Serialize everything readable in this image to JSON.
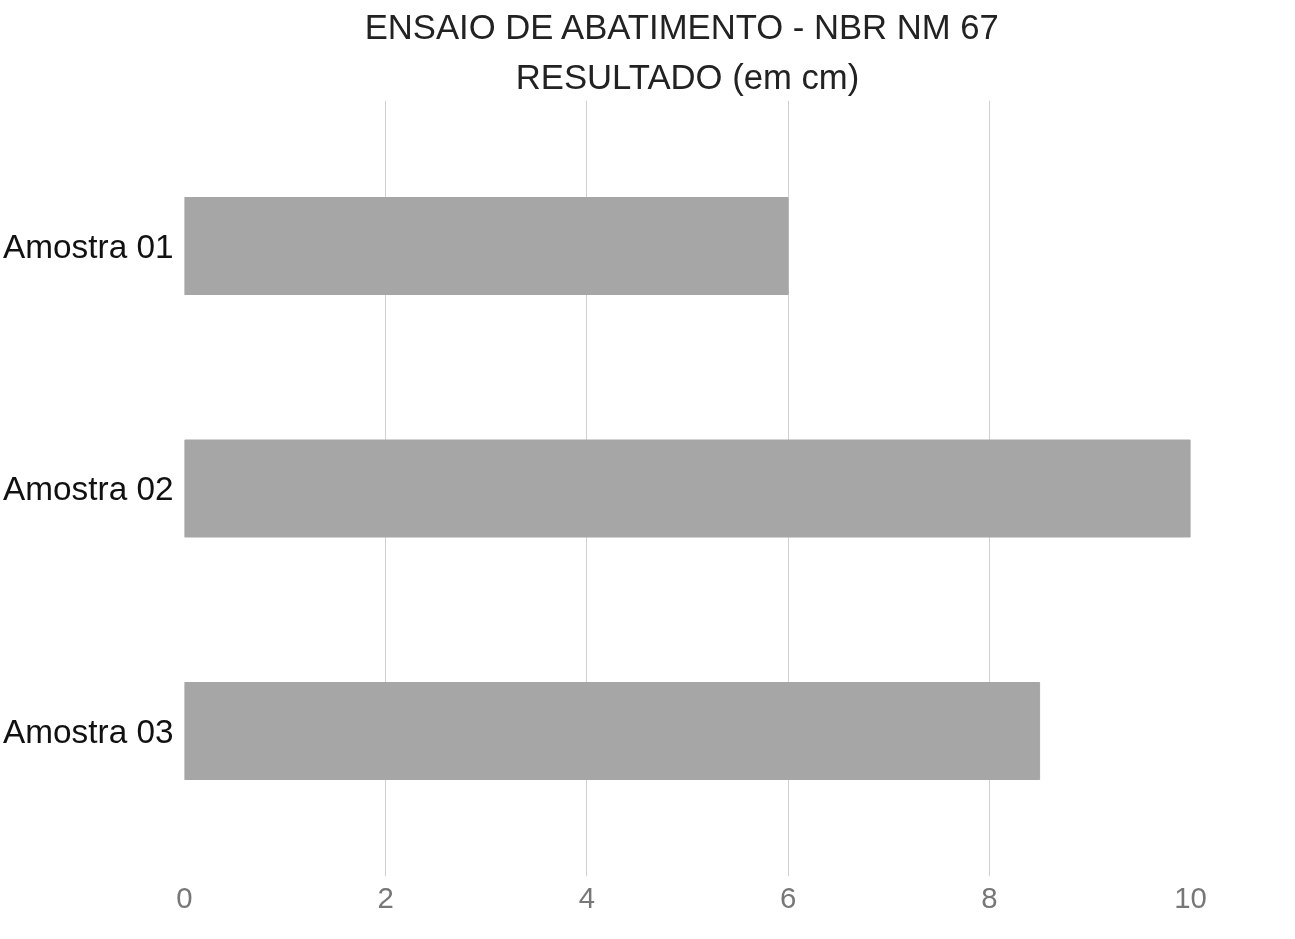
{
  "chart_data": {
    "type": "bar",
    "orientation": "horizontal",
    "title": "ENSAIO DE ABATIMENTO  - NBR NM 67",
    "subtitle": "RESULTADO (em cm)",
    "categories": [
      "Amostra 01",
      "Amostra 02",
      "Amostra 03"
    ],
    "values": [
      6,
      10,
      8.5
    ],
    "color": "#a6a6a6",
    "xlim": [
      0,
      10
    ],
    "xticks": [
      0,
      2,
      4,
      6,
      8,
      10
    ],
    "grid": "x"
  }
}
